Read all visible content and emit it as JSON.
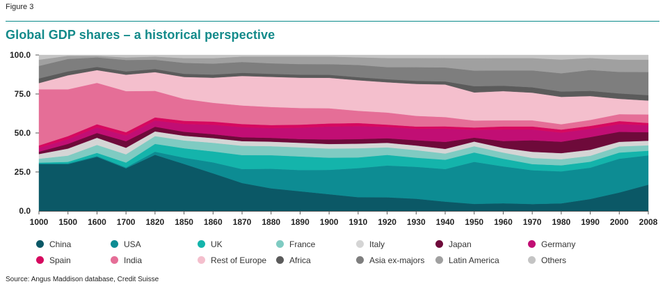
{
  "figure_label": "Figure 3",
  "title": "Global GDP shares – a historical perspective",
  "source": "Source: Angus Maddison database, Credit Suisse",
  "chart_data": {
    "type": "area",
    "stacked": true,
    "title": "Global GDP shares – a historical perspective",
    "xlabel": "",
    "ylabel": "",
    "ylim": [
      0,
      100
    ],
    "yticks": [
      "0.0",
      "25.0",
      "50.0",
      "75.0",
      "100.0"
    ],
    "categories": [
      "1000",
      "1500",
      "1600",
      "1700",
      "1820",
      "1850",
      "1860",
      "1870",
      "1880",
      "1890",
      "1900",
      "1910",
      "1920",
      "1930",
      "1940",
      "1950",
      "1960",
      "1970",
      "1980",
      "1990",
      "2000",
      "2008"
    ],
    "legend_position": "bottom",
    "series": [
      {
        "name": "China",
        "color": "#0b5866",
        "values": [
          30,
          30,
          34,
          26,
          36,
          30,
          24,
          18,
          15,
          13,
          11,
          9,
          9,
          8,
          6,
          4.5,
          5,
          4.5,
          5,
          8,
          12,
          17
        ]
      },
      {
        "name": "USA",
        "color": "#0d8c93",
        "values": [
          0.5,
          0.5,
          0.5,
          0.5,
          2,
          4,
          7,
          9,
          13,
          14,
          16,
          19,
          21,
          21,
          21,
          27,
          24,
          22,
          21,
          21,
          22,
          19
        ]
      },
      {
        "name": "UK",
        "color": "#14b4ab",
        "values": [
          0.5,
          1,
          2,
          3,
          5,
          6,
          7,
          9,
          9,
          9,
          8,
          7,
          7,
          6,
          6,
          6,
          5,
          4,
          4,
          4,
          4,
          3
        ]
      },
      {
        "name": "France",
        "color": "#7fcbc2",
        "values": [
          2.5,
          4,
          5,
          5,
          5,
          5,
          5.5,
          6,
          6,
          6,
          6,
          6,
          5,
          5,
          4,
          4,
          4,
          4,
          4,
          4,
          4,
          3.5
        ]
      },
      {
        "name": "Italy",
        "color": "#d5d5d5",
        "values": [
          3,
          4.5,
          4.5,
          4,
          3,
          3,
          3,
          3,
          3,
          3,
          3,
          3,
          3,
          3,
          3,
          3,
          3,
          4,
          4,
          4,
          3,
          3
        ]
      },
      {
        "name": "Japan",
        "color": "#6e0a3a",
        "values": [
          1.5,
          3,
          3,
          4,
          3,
          2.5,
          2.5,
          2.5,
          2.5,
          2.5,
          3,
          3,
          3,
          3.5,
          4.5,
          2.5,
          4.5,
          7.5,
          7.5,
          8.5,
          6.5,
          5.5
        ]
      },
      {
        "name": "Germany",
        "color": "#c10e74",
        "values": [
          2.5,
          3,
          3.5,
          3.5,
          4,
          5,
          6,
          6.5,
          6.5,
          7.5,
          8.5,
          8.5,
          7.5,
          7.5,
          8.5,
          5,
          7.5,
          7,
          6,
          5.5,
          5,
          4.5
        ]
      },
      {
        "name": "Spain",
        "color": "#d6095f",
        "values": [
          1.5,
          2,
          2,
          2,
          2,
          2,
          2,
          2,
          2,
          2,
          2,
          2,
          1.5,
          1.5,
          1.5,
          1.5,
          2,
          2,
          2,
          2,
          2,
          1.5
        ]
      },
      {
        "name": "India",
        "color": "#e56e97",
        "values": [
          36,
          30,
          26,
          25,
          17,
          14,
          12,
          12,
          12,
          11,
          10,
          8,
          8,
          7,
          6,
          4.5,
          4,
          4,
          3.5,
          4,
          4.5,
          5.5
        ]
      },
      {
        "name": "Rest of Europe",
        "color": "#f4bfcd",
        "values": [
          4,
          9,
          8,
          10,
          12,
          14,
          16,
          19,
          20,
          20,
          20,
          20,
          20,
          21,
          21,
          18,
          19,
          18,
          18,
          16,
          10,
          9
        ]
      },
      {
        "name": "Africa",
        "color": "#5b5b5b",
        "values": [
          3,
          2.5,
          2,
          2,
          2,
          2,
          2,
          2,
          2,
          2,
          2,
          2,
          2,
          2,
          2,
          4,
          3.5,
          3.5,
          3.5,
          3.5,
          3.5,
          3.5
        ]
      },
      {
        "name": "Asia ex-majors",
        "color": "#7e7e7e",
        "values": [
          8,
          8,
          6,
          7,
          6,
          7,
          7,
          7,
          7,
          7,
          7,
          8,
          8,
          9,
          9,
          10,
          10,
          11,
          12,
          14,
          14,
          15
        ]
      },
      {
        "name": "Latin America",
        "color": "#a0a0a0",
        "values": [
          4,
          2,
          1,
          1.5,
          2,
          3,
          3.5,
          3.5,
          4.5,
          5,
          5,
          5,
          6,
          6,
          6,
          8,
          8,
          8,
          9,
          8,
          8,
          8
        ]
      },
      {
        "name": "Others",
        "color": "#c4c4c4",
        "values": [
          3,
          0.5,
          0.5,
          1.5,
          1,
          2,
          2,
          1,
          1,
          1,
          1,
          1.5,
          2,
          2,
          2,
          2,
          2,
          2,
          3,
          2,
          3,
          3
        ]
      }
    ]
  }
}
